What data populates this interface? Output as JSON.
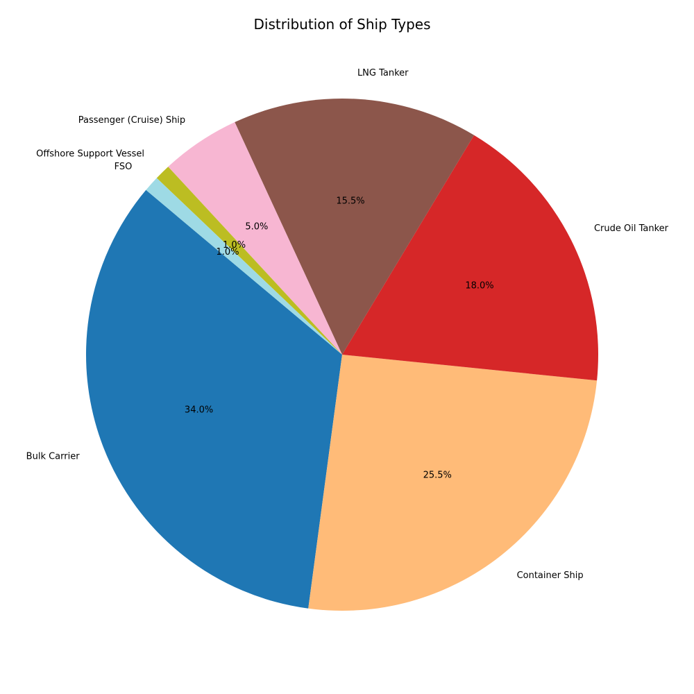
{
  "chart_data": {
    "type": "pie",
    "title": "Distribution of Ship Types",
    "slices": [
      {
        "label": "Bulk Carrier",
        "value": 34.0,
        "pct_label": "34.0%",
        "color": "#1f77b4"
      },
      {
        "label": "Container Ship",
        "value": 25.5,
        "pct_label": "25.5%",
        "color": "#ffbb78"
      },
      {
        "label": "Crude Oil Tanker",
        "value": 18.0,
        "pct_label": "18.0%",
        "color": "#d62728"
      },
      {
        "label": "LNG Tanker",
        "value": 15.5,
        "pct_label": "15.5%",
        "color": "#8c564b"
      },
      {
        "label": "Passenger (Cruise) Ship",
        "value": 5.0,
        "pct_label": "5.0%",
        "color": "#f7b6d2"
      },
      {
        "label": "Offshore Support Vessel",
        "value": 1.0,
        "pct_label": "1.0%",
        "color": "#bcbd22"
      },
      {
        "label": "FSO",
        "value": 1.0,
        "pct_label": "1.0%",
        "color": "#9edae5"
      }
    ],
    "start_angle_deg": 140,
    "direction": "counterclockwise"
  }
}
